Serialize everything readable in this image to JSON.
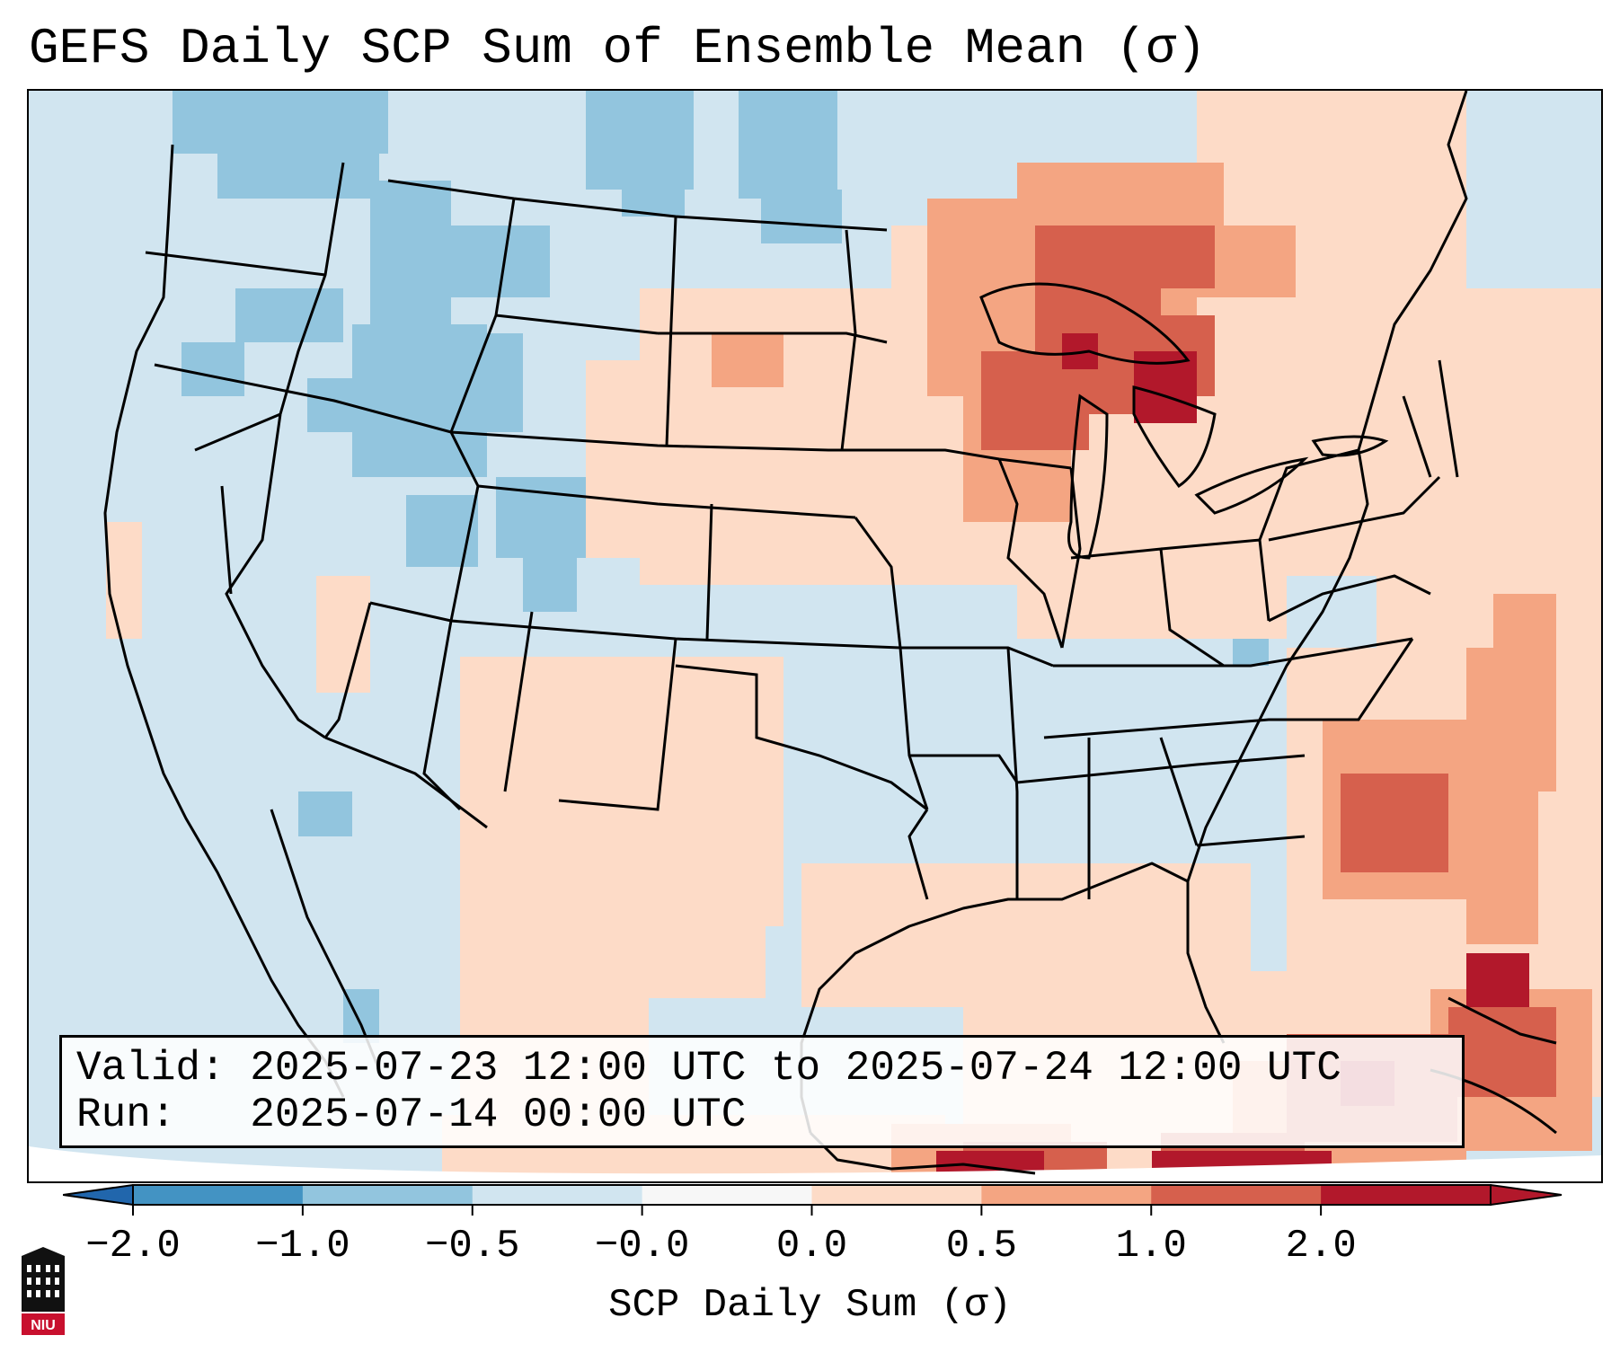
{
  "title": "GEFS Daily SCP Sum of Ensemble Mean (σ)",
  "info": {
    "valid_label": "Valid:",
    "valid_value": "2025-07-23 12:00 UTC to 2025-07-24 12:00 UTC",
    "run_label": "Run:",
    "run_value": "2025-07-14 00:00 UTC"
  },
  "colorbar": {
    "label": "SCP Daily Sum (σ)",
    "ticks": [
      "−2.0",
      "−1.0",
      "−0.5",
      "−0.0",
      "0.0",
      "0.5",
      "1.0",
      "2.0"
    ],
    "colors": [
      "#4393c3",
      "#92c5de",
      "#d1e5f0",
      "#f7f7f7",
      "#fddbc7",
      "#f4a582",
      "#d6604d",
      "#b2182b"
    ],
    "under_color": "#2166ac",
    "over_color": "#b2182b"
  },
  "map": {
    "background_color": "#d1e5f0",
    "features": [
      "state-boundaries",
      "coastlines",
      "great-lakes",
      "country-borders"
    ]
  },
  "logo": {
    "text": "NIU"
  }
}
